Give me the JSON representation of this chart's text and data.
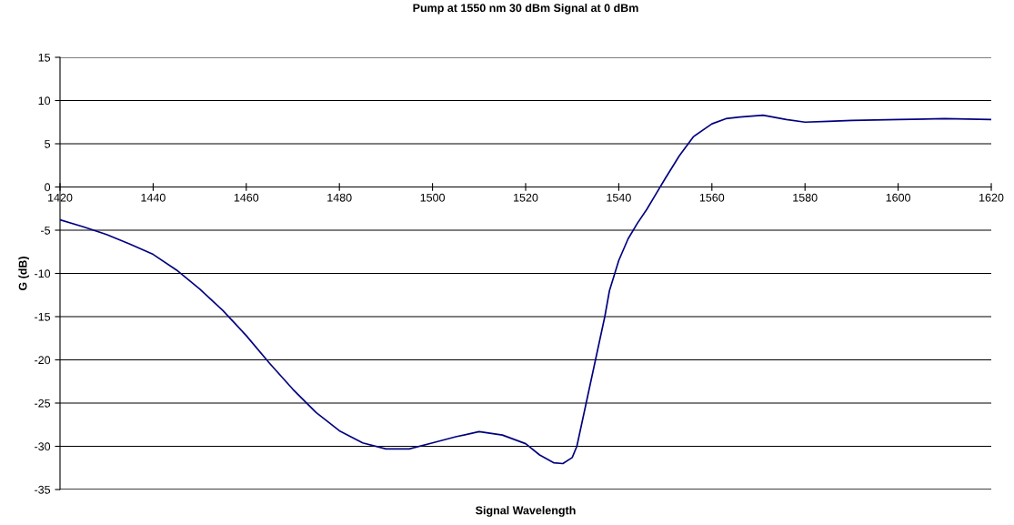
{
  "chart_data": {
    "type": "line",
    "title": "Pump at 1550 nm 30 dBm Signal at 0 dBm",
    "xlabel": "Signal Wavelength",
    "ylabel": "G (dB)",
    "x": [
      1420,
      1425,
      1430,
      1435,
      1440,
      1445,
      1450,
      1455,
      1460,
      1465,
      1470,
      1475,
      1480,
      1485,
      1490,
      1495,
      1500,
      1505,
      1510,
      1515,
      1520,
      1523,
      1526,
      1528,
      1530,
      1531,
      1533,
      1535,
      1537,
      1538,
      1540,
      1542,
      1544,
      1546,
      1548,
      1550,
      1553,
      1556,
      1560,
      1563,
      1566,
      1571,
      1576,
      1580,
      1585,
      1590,
      1600,
      1610,
      1620
    ],
    "series": [
      {
        "color": "#000080",
        "values": [
          -3.8,
          -4.6,
          -5.5,
          -6.6,
          -7.8,
          -9.6,
          -11.8,
          -14.3,
          -17.2,
          -20.4,
          -23.4,
          -26.1,
          -28.2,
          -29.6,
          -30.3,
          -30.3,
          -29.6,
          -28.9,
          -28.3,
          -28.7,
          -29.7,
          -31.0,
          -31.9,
          -32.0,
          -31.3,
          -30.0,
          -25.0,
          -20.0,
          -15.0,
          -12.0,
          -8.5,
          -6.0,
          -4.2,
          -2.6,
          -0.8,
          1.0,
          3.6,
          5.8,
          7.3,
          7.9,
          8.1,
          8.3,
          7.8,
          7.5,
          7.6,
          7.7,
          7.8,
          7.9,
          7.8
        ]
      }
    ],
    "xlim": [
      1420,
      1620
    ],
    "xticks": [
      1420,
      1440,
      1460,
      1480,
      1500,
      1520,
      1540,
      1560,
      1580,
      1600,
      1620
    ],
    "ylim": [
      -35,
      15
    ],
    "yticks": [
      -35,
      -30,
      -25,
      -20,
      -15,
      -10,
      -5,
      0,
      5,
      10,
      15
    ],
    "grid": "y",
    "legend": false,
    "marker": "none",
    "line_style": "solid"
  }
}
